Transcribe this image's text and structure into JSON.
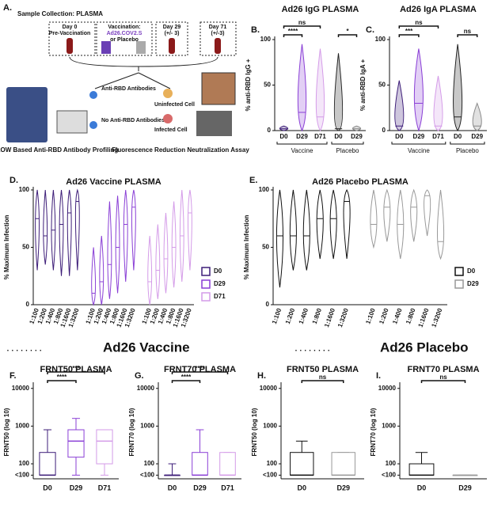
{
  "diagram": {
    "panel": "A.",
    "title": "Sample Collection: PLASMA",
    "day0": "Day 0",
    "day0_note": "Pre-Vaccination",
    "vacc": "Vaccination:",
    "vacc_name": "Ad26.COV2.S",
    "vacc_alt": "or Placebo",
    "day29": "Day 29",
    "day29_note": "(+/- 3)",
    "day71": "Day 71",
    "day71_note": "(+/-3)",
    "anti": "Anti-RBD Antibodies",
    "noanti": "No Anti-RBD Antibodies",
    "uninf": "Uninfected Cell",
    "inf": "Infected Cell",
    "flow": "FLOW Based Anti-RBD Antibody Profiling",
    "frna": "Fluorescence Reduction Neutralization Assay"
  },
  "headings": {
    "vaccine": "Ad26 Vaccine",
    "placebo": "Ad26 Placebo"
  },
  "chart_data": [
    {
      "type": "violin",
      "panel": "B.",
      "title": "Ad26 IgG PLASMA",
      "ylabel": "% anti-RBD IgG +",
      "categories": [
        "D0",
        "D29",
        "D71",
        "D0",
        "D29"
      ],
      "colors": [
        "#3d1d78",
        "#8a3fd6",
        "#d49be8",
        "#222222",
        "#888888"
      ],
      "values": [
        [
          0,
          2,
          5
        ],
        [
          0,
          20,
          95
        ],
        [
          0,
          15,
          90
        ],
        [
          0,
          2,
          85
        ],
        [
          0,
          2,
          5
        ]
      ],
      "groups": [
        {
          "label": "Vaccine",
          "size": 3
        },
        {
          "label": "Placebo",
          "size": 2
        }
      ],
      "annotations": [
        {
          "from": 0,
          "to": 1,
          "label": "****"
        },
        {
          "from": 0,
          "to": 2,
          "label": "ns"
        },
        {
          "from": 3,
          "to": 4,
          "label": "*"
        }
      ],
      "ylim": [
        0,
        100
      ],
      "yticks": [
        0,
        50,
        100
      ]
    },
    {
      "type": "violin",
      "panel": "C.",
      "title": "Ad26 IgA PLASMA",
      "ylabel": "% anti-RBD IgA +",
      "categories": [
        "D0",
        "D29",
        "D71",
        "D0",
        "D29"
      ],
      "colors": [
        "#3d1d78",
        "#8a3fd6",
        "#d49be8",
        "#222222",
        "#888888"
      ],
      "values": [
        [
          0,
          5,
          55
        ],
        [
          0,
          30,
          90
        ],
        [
          0,
          5,
          60
        ],
        [
          0,
          15,
          95
        ],
        [
          0,
          5,
          30
        ]
      ],
      "groups": [
        {
          "label": "Vaccine",
          "size": 3
        },
        {
          "label": "Placebo",
          "size": 2
        }
      ],
      "annotations": [
        {
          "from": 0,
          "to": 1,
          "label": "***"
        },
        {
          "from": 0,
          "to": 2,
          "label": "ns"
        },
        {
          "from": 3,
          "to": 4,
          "label": "ns"
        }
      ],
      "ylim": [
        0,
        100
      ],
      "yticks": [
        0,
        50,
        100
      ]
    },
    {
      "type": "violin-grouped",
      "panel": "D.",
      "title": "Ad26 Vaccine PLASMA",
      "ylabel": "% Maximum Infection",
      "categories": [
        "1:100",
        "1:200",
        "1:400",
        "1:800",
        "1:1600",
        "1:3200"
      ],
      "series": [
        {
          "name": "D0",
          "color": "#3d1d78",
          "values": [
            [
              30,
              75,
              100
            ],
            [
              35,
              60,
              100
            ],
            [
              30,
              65,
              100
            ],
            [
              25,
              70,
              100
            ],
            [
              25,
              80,
              100
            ],
            [
              30,
              90,
              100
            ]
          ]
        },
        {
          "name": "D29",
          "color": "#8a3fd6",
          "values": [
            [
              0,
              10,
              50
            ],
            [
              0,
              20,
              60
            ],
            [
              5,
              35,
              90
            ],
            [
              10,
              50,
              95
            ],
            [
              20,
              70,
              100
            ],
            [
              30,
              85,
              100
            ]
          ]
        },
        {
          "name": "D71",
          "color": "#d49be8",
          "values": [
            [
              0,
              20,
              60
            ],
            [
              5,
              30,
              70
            ],
            [
              10,
              40,
              80
            ],
            [
              15,
              50,
              90
            ],
            [
              20,
              60,
              100
            ],
            [
              30,
              80,
              100
            ]
          ]
        }
      ],
      "legend": "right",
      "ylim": [
        0,
        100
      ],
      "yticks": [
        0,
        50,
        100
      ]
    },
    {
      "type": "violin-grouped",
      "panel": "E.",
      "title": "Ad26 Placebo PLASMA",
      "ylabel": "% Maximum Infection",
      "categories": [
        "1:100",
        "1:200",
        "1:400",
        "1:800",
        "1:1600",
        "1:3200"
      ],
      "series": [
        {
          "name": "D0",
          "color": "#111111",
          "values": [
            [
              15,
              60,
              100
            ],
            [
              30,
              60,
              100
            ],
            [
              30,
              60,
              100
            ],
            [
              40,
              75,
              100
            ],
            [
              40,
              75,
              100
            ],
            [
              40,
              90,
              100
            ]
          ]
        },
        {
          "name": "D29",
          "color": "#999999",
          "values": [
            [
              50,
              70,
              100
            ],
            [
              55,
              85,
              100
            ],
            [
              40,
              70,
              100
            ],
            [
              55,
              85,
              100
            ],
            [
              60,
              95,
              100
            ],
            [
              40,
              55,
              100
            ]
          ]
        }
      ],
      "legend": "right",
      "ylim": [
        0,
        100
      ],
      "yticks": [
        0,
        50,
        100
      ]
    },
    {
      "type": "box",
      "panel": "F.",
      "title": "FRNT50 PLASMA",
      "ylabel": "FRNT50 (log 10)",
      "categories": [
        "D0",
        "D29",
        "D71"
      ],
      "colors": [
        "#3d1d78",
        "#8a3fd6",
        "#d49be8"
      ],
      "values": [
        [
          50,
          50,
          50,
          200,
          800
        ],
        [
          50,
          150,
          400,
          800,
          1600
        ],
        [
          50,
          100,
          400,
          800,
          800
        ]
      ],
      "annotations": [
        {
          "from": 0,
          "to": 1,
          "label": "****"
        },
        {
          "from": 0,
          "to": 2,
          "label": "***"
        }
      ],
      "log": true,
      "ylim": [
        40,
        12000
      ],
      "yticks": [
        {
          "value": 50,
          "label": "<100"
        },
        100,
        1000,
        10000
      ]
    },
    {
      "type": "box",
      "panel": "G.",
      "title": "FRNT70 PLASMA",
      "ylabel": "FRNT70 (log 10)",
      "categories": [
        "D0",
        "D29",
        "D71"
      ],
      "colors": [
        "#3d1d78",
        "#8a3fd6",
        "#d49be8"
      ],
      "values": [
        [
          50,
          50,
          50,
          50,
          100
        ],
        [
          50,
          50,
          50,
          200,
          800
        ],
        [
          50,
          50,
          50,
          200,
          200
        ]
      ],
      "annotations": [
        {
          "from": 0,
          "to": 1,
          "label": "****"
        },
        {
          "from": 0,
          "to": 2,
          "label": "****"
        }
      ],
      "log": true,
      "ylim": [
        40,
        12000
      ],
      "yticks": [
        {
          "value": 50,
          "label": "<100"
        },
        100,
        1000,
        10000
      ]
    },
    {
      "type": "box",
      "panel": "H.",
      "title": "FRNT50 PLASMA",
      "ylabel": "FRNT50 (log 10)",
      "categories": [
        "D0",
        "D29"
      ],
      "colors": [
        "#111111",
        "#999999"
      ],
      "values": [
        [
          50,
          50,
          50,
          200,
          400
        ],
        [
          50,
          50,
          50,
          200,
          200
        ]
      ],
      "annotations": [
        {
          "from": 0,
          "to": 1,
          "label": "ns"
        }
      ],
      "log": true,
      "ylim": [
        40,
        12000
      ],
      "yticks": [
        {
          "value": 50,
          "label": "<100"
        },
        100,
        1000,
        10000
      ]
    },
    {
      "type": "box",
      "panel": "I.",
      "title": "FRNT70 PLASMA",
      "ylabel": "FRNT70 (log 10)",
      "categories": [
        "D0",
        "D29"
      ],
      "colors": [
        "#111111",
        "#999999"
      ],
      "values": [
        [
          50,
          50,
          50,
          100,
          200
        ],
        [
          50,
          50,
          50,
          50,
          50
        ]
      ],
      "annotations": [
        {
          "from": 0,
          "to": 1,
          "label": "ns"
        }
      ],
      "log": true,
      "ylim": [
        40,
        12000
      ],
      "yticks": [
        {
          "value": 50,
          "label": "<100"
        },
        100,
        1000,
        10000
      ]
    }
  ]
}
